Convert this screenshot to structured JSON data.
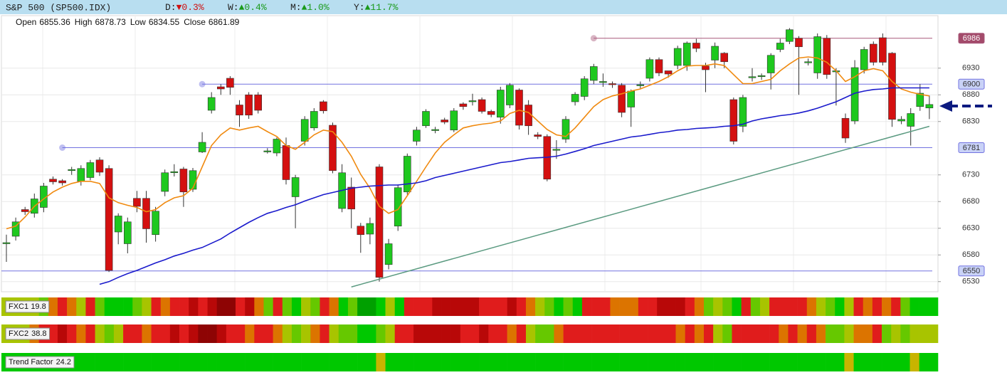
{
  "chart_data": {
    "type": "candlestick",
    "title": "S&P 500 (SP500.IDX)",
    "changes": [
      {
        "label": "D:",
        "text": "▼0.3%",
        "color": "#d01010"
      },
      {
        "label": "W:",
        "text": "▲0.4%",
        "color": "#1a9a1a"
      },
      {
        "label": "M:",
        "text": "▲1.0%",
        "color": "#1a9a1a"
      },
      {
        "label": "Y:",
        "text": "▲11.7%",
        "color": "#1a9a1a"
      }
    ],
    "ohlc_header": [
      {
        "label": "Open",
        "value": 6855.36
      },
      {
        "label": "High",
        "value": 6878.73
      },
      {
        "label": "Low",
        "value": 6834.55
      },
      {
        "label": "Close",
        "value": 6861.89
      }
    ],
    "open": [
      6602,
      6615,
      6665,
      6658,
      6669,
      6722,
      6719,
      6738,
      6718,
      6725,
      6758,
      6742,
      6623,
      6601,
      6686,
      6686,
      6618,
      6699,
      6734,
      6741,
      6703,
      6773,
      6851,
      6895,
      6911,
      6861,
      6880,
      6880,
      6775,
      6771,
      6785,
      6689,
      6793,
      6818,
      6867,
      6823,
      6667,
      6707,
      6634,
      6619,
      6745,
      6562,
      6634,
      6698,
      6793,
      6822,
      6815,
      6833,
      6814,
      6863,
      6867,
      6871,
      6849,
      6838,
      6861,
      6889,
      6861,
      6805,
      6802,
      6778,
      6797,
      6867,
      6877,
      6907,
      6905,
      6901,
      6898,
      6857,
      6898,
      6911,
      6946,
      6925,
      6935,
      6935,
      6977,
      6934,
      6945,
      6958,
      6871,
      6821,
      6914,
      6915,
      6921,
      6965,
      6980,
      6986,
      6942,
      6921,
      6986,
      6925,
      6836,
      6831,
      6927,
      6975,
      6987,
      6958,
      6831,
      6821,
      6858,
      6855.36
    ],
    "high": [
      6618,
      6650,
      6670,
      6695,
      6715,
      6727,
      6722,
      6745,
      6748,
      6758,
      6763,
      6748,
      6658,
      6650,
      6700,
      6700,
      6670,
      6740,
      6750,
      6745,
      6743,
      6810,
      6885,
      6900,
      6915,
      6870,
      6885,
      6885,
      6780,
      6800,
      6800,
      6730,
      6840,
      6855,
      6870,
      6828,
      6750,
      6725,
      6640,
      6650,
      6750,
      6610,
      6712,
      6770,
      6820,
      6853,
      6820,
      6837,
      6855,
      6866,
      6882,
      6875,
      6852,
      6895,
      6902,
      6892,
      6870,
      6810,
      6806,
      6795,
      6840,
      6885,
      6915,
      6938,
      6920,
      6905,
      6902,
      6890,
      6905,
      6950,
      6950,
      6925,
      6972,
      6980,
      6985,
      6940,
      6978,
      6960,
      6875,
      6880,
      6930,
      6920,
      6958,
      6985,
      7005,
      6990,
      6948,
      6995,
      6992,
      6930,
      6845,
      6945,
      6970,
      6980,
      6995,
      6960,
      6840,
      6855,
      6900,
      6878.73
    ],
    "low": [
      6567,
      6607,
      6655,
      6650,
      6660,
      6712,
      6710,
      6730,
      6710,
      6720,
      6728,
      6548,
      6600,
      6583,
      6660,
      6603,
      6605,
      6690,
      6727,
      6670,
      6698,
      6771,
      6845,
      6880,
      6880,
      6820,
      6835,
      6845,
      6770,
      6765,
      6712,
      6630,
      6785,
      6813,
      6845,
      6733,
      6660,
      6630,
      6584,
      6600,
      6530,
      6553,
      6625,
      6693,
      6785,
      6818,
      6808,
      6825,
      6810,
      6852,
      6860,
      6845,
      6838,
      6826,
      6855,
      6815,
      6805,
      6797,
      6718,
      6760,
      6790,
      6860,
      6870,
      6900,
      6895,
      6893,
      6838,
      6820,
      6892,
      6905,
      6915,
      6912,
      6928,
      6925,
      6960,
      6885,
      6930,
      6930,
      6787,
      6810,
      6905,
      6908,
      6890,
      6960,
      6975,
      6880,
      6935,
      6910,
      6910,
      6860,
      6790,
      6825,
      6920,
      6935,
      6935,
      6820,
      6825,
      6785,
      6850,
      6834.55
    ],
    "close": [
      6603,
      6642,
      6661,
      6685,
      6709,
      6717,
      6715,
      6740,
      6742,
      6753,
      6735,
      6551,
      6653,
      6642,
      6671,
      6629,
      6662,
      6734,
      6736,
      6698,
      6738,
      6791,
      6875,
      6891,
      6894,
      6842,
      6842,
      6851,
      6775,
      6797,
      6721,
      6725,
      6834,
      6849,
      6850,
      6738,
      6734,
      6666,
      6618,
      6639,
      6538,
      6601,
      6706,
      6765,
      6814,
      6849,
      6815,
      6829,
      6850,
      6858,
      6869,
      6849,
      6843,
      6889,
      6898,
      6823,
      6822,
      6802,
      6722,
      6778,
      6834,
      6881,
      6910,
      6933,
      6905,
      6900,
      6847,
      6887,
      6899,
      6946,
      6921,
      6919,
      6967,
      6977,
      6967,
      6927,
      6971,
      6942,
      6793,
      6875,
      6914,
      6916,
      6954,
      6977,
      7002,
      6970,
      6942,
      6989,
      6918,
      6925,
      6799,
      6931,
      6965,
      6941,
      6941,
      6834,
      6834,
      6845,
      6883,
      6861.89
    ],
    "up_color": "#1ec81e",
    "down_color": "#d41010",
    "ylim": [
      6511,
      7007
    ],
    "yticks": [
      6530,
      6580,
      6630,
      6680,
      6730,
      6830,
      6880,
      6930
    ],
    "grid": true,
    "moving_averages": [
      {
        "color": "#f08a10",
        "values": [
          6629,
          6634,
          6651,
          6671,
          6685,
          6698,
          6707,
          6714,
          6718,
          6718,
          6714,
          6687,
          6678,
          6673,
          6669,
          6661,
          6665,
          6678,
          6687,
          6691,
          6705,
          6745,
          6785,
          6805,
          6818,
          6814,
          6818,
          6821,
          6811,
          6802,
          6785,
          6778,
          6791,
          6805,
          6814,
          6811,
          6791,
          6765,
          6731,
          6705,
          6671,
          6658,
          6665,
          6691,
          6718,
          6745,
          6771,
          6791,
          6805,
          6818,
          6822,
          6825,
          6827,
          6831,
          6845,
          6851,
          6847,
          6831,
          6815,
          6805,
          6802,
          6818,
          6838,
          6858,
          6871,
          6878,
          6882,
          6887,
          6891,
          6898,
          6905,
          6914,
          6925,
          6934,
          6935,
          6935,
          6938,
          6935,
          6918,
          6901,
          6901,
          6905,
          6909,
          6925,
          6938,
          6949,
          6951,
          6949,
          6941,
          6925,
          6905,
          6914,
          6925,
          6929,
          6925,
          6905,
          6891,
          6885,
          6881,
          6878
        ]
      },
      {
        "color": "#1a1acc",
        "values": [
          null,
          null,
          null,
          null,
          null,
          null,
          null,
          null,
          null,
          null,
          6525,
          6530,
          6538,
          6545,
          6551,
          6558,
          6565,
          6571,
          6578,
          6583,
          6589,
          6594,
          6602,
          6610,
          6621,
          6631,
          6641,
          6650,
          6658,
          6663,
          6669,
          6674,
          6681,
          6687,
          6693,
          6697,
          6701,
          6705,
          6707,
          6709,
          6710,
          6711,
          6711,
          6713,
          6715,
          6719,
          6725,
          6729,
          6733,
          6737,
          6741,
          6745,
          6749,
          6753,
          6755,
          6758,
          6761,
          6762,
          6763,
          6765,
          6769,
          6774,
          6779,
          6785,
          6789,
          6793,
          6797,
          6801,
          6803,
          6806,
          6809,
          6811,
          6814,
          6815,
          6817,
          6818,
          6819,
          6821,
          6822,
          6825,
          6831,
          6835,
          6838,
          6841,
          6843,
          6846,
          6850,
          6855,
          6861,
          6867,
          6875,
          6883,
          6887,
          6890,
          6891,
          6893,
          6893,
          6893,
          6893,
          6893
        ]
      }
    ],
    "levels": [
      {
        "value": 6986,
        "color": "#a8587a",
        "label_bg": "#a34a6a",
        "label_color": "#ffffff",
        "start": 63
      },
      {
        "value": 6900,
        "color": "#7272e0",
        "label_bg": "#c9d2f7",
        "label_color": "#333333",
        "start": 21
      },
      {
        "value": 6781,
        "color": "#7272e0",
        "label_bg": "#c9d2f7",
        "label_color": "#333333",
        "start": 6
      },
      {
        "value": 6550,
        "color": "#7272e0",
        "label_bg": "#c9d2f7",
        "label_color": "#333333"
      }
    ],
    "trendline": {
      "x": [
        37,
        99
      ],
      "values": [
        6520,
        6821
      ],
      "color": "#5a9a80"
    },
    "palette": {
      "G": "#00c800",
      "L": "#66c800",
      "Y": "#a8c400",
      "O": "#dc7400",
      "R": "#e01c1c",
      "D": "#b80808",
      "V": "#8e0404",
      "K": "#00a000",
      "T": "#c8b400"
    },
    "indicators": [
      {
        "name": "FXC1",
        "value": 19.8,
        "cells": "YYYYLOROYRLGGGLYRORRDRDVVRDOLRLGYLROGLKKGYGRRRDDDDDRRRDROYLGLGRRROOORRDDDROLYLGRLYRRRROYLGYRORORLGGG"
      },
      {
        "name": "FXC2",
        "value": 38.8,
        "cells": "YYYORRDRORYLYRRORRDRDVVDRRORROYLYORYLLGGLYRRDDDDDRRDRRORYLLORRRRRRRRRRRRORORYLRRRRROROROLLYOORLYLYYY"
      },
      {
        "name": "Trend Factor",
        "value": 24.2,
        "cells": "GGGGGGGGGGGGGGGGGGGGGGGGGGGGGGGGGGGGGGGGTGGGGGGGGGGGGGGGGGGGGGGGGGGGGGGGGGGGGGGGGGGGGGGGGGTGGGGGGTGG"
      }
    ]
  }
}
